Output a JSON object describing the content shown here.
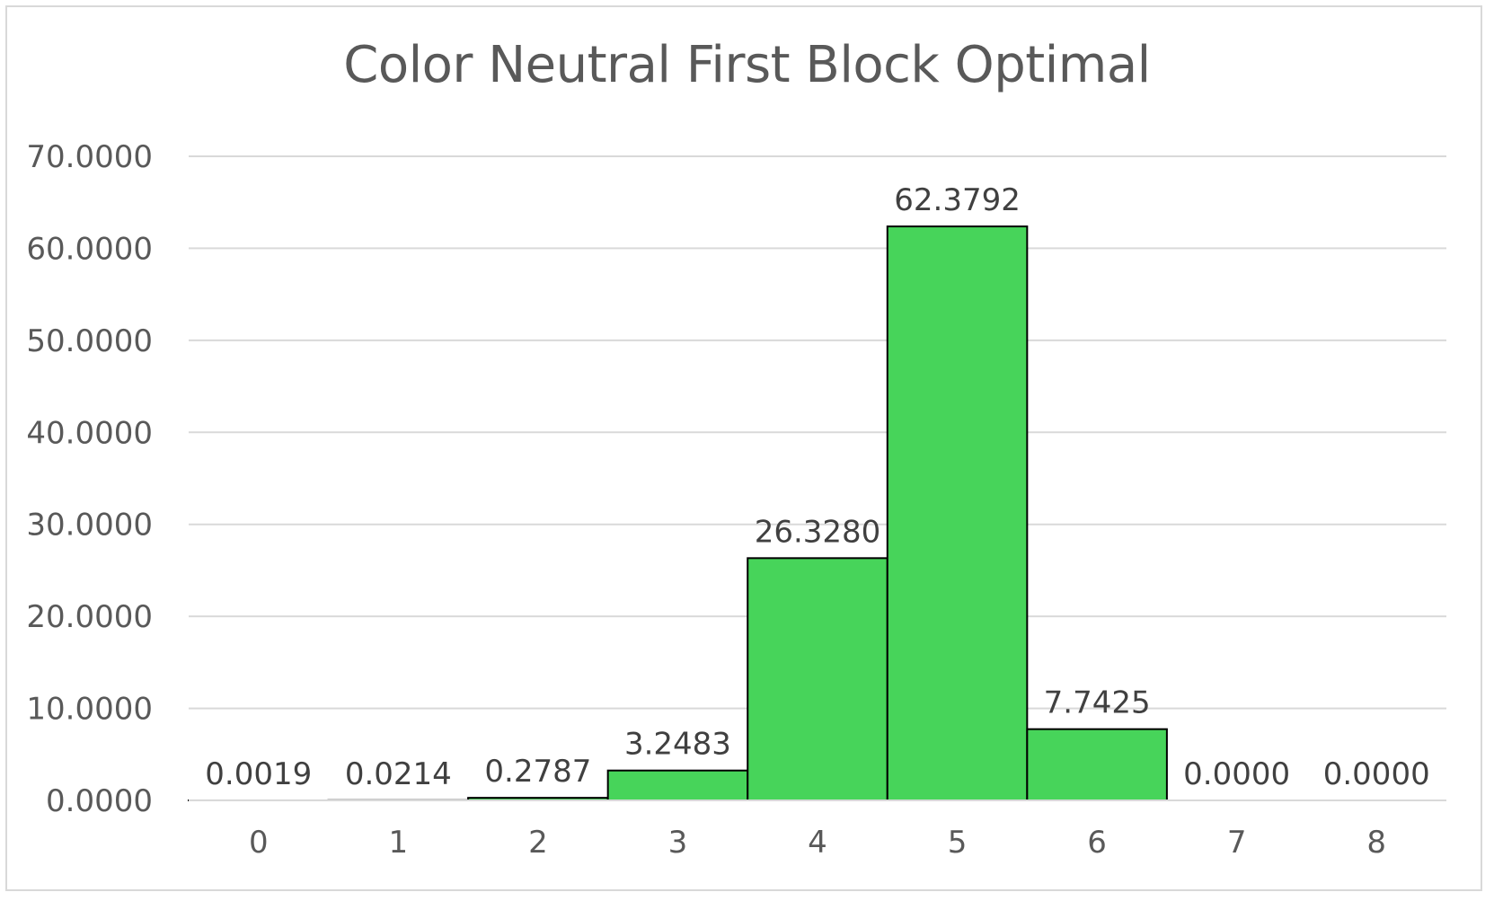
{
  "chart_data": {
    "type": "bar",
    "title": "Color Neutral First Block Optimal",
    "xlabel": "",
    "ylabel": "",
    "categories": [
      "0",
      "1",
      "2",
      "3",
      "4",
      "5",
      "6",
      "7",
      "8"
    ],
    "values": [
      0.0019,
      0.0214,
      0.2787,
      3.2483,
      26.328,
      62.3792,
      7.7425,
      0.0,
      0.0
    ],
    "data_labels": [
      "0.0019",
      "0.0214",
      "0.2787",
      "3.2483",
      "26.3280",
      "62.3792",
      "7.7425",
      "0.0000",
      "0.0000"
    ],
    "ylim": [
      0,
      70
    ],
    "yticks": [
      0,
      10,
      20,
      30,
      40,
      50,
      60,
      70
    ],
    "ytick_labels": [
      "0.0000",
      "10.0000",
      "20.0000",
      "30.0000",
      "40.0000",
      "50.0000",
      "60.0000",
      "70.0000"
    ],
    "grid": true,
    "legend": "none",
    "bar_color": "#47d45a",
    "bar_edge_color": "#000000",
    "gridline_color": "#d9d9d9",
    "text_color": "#595959"
  }
}
